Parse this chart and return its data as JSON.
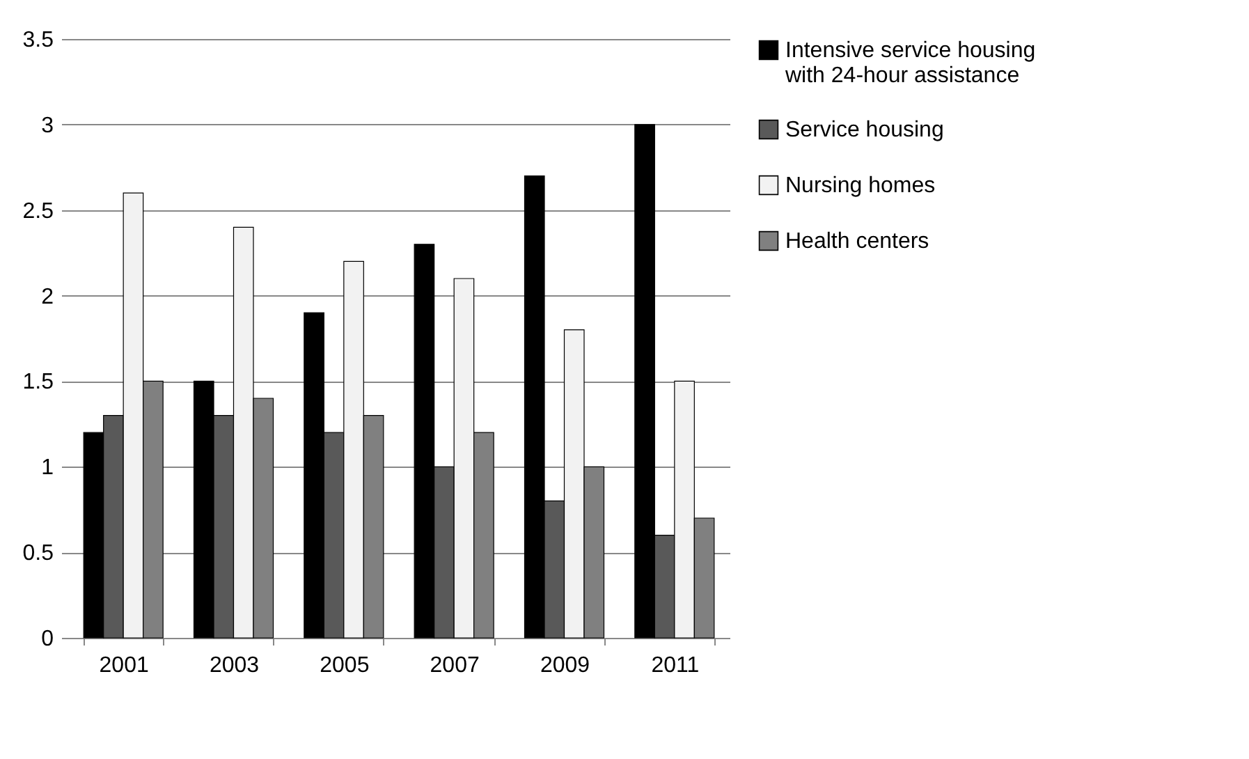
{
  "chart_data": {
    "type": "bar",
    "categories": [
      "2001",
      "2003",
      "2005",
      "2007",
      "2009",
      "2011"
    ],
    "series": [
      {
        "name": "Intensive service housing with 24-hour assistance",
        "color": "#000000",
        "values": [
          1.2,
          1.5,
          1.9,
          2.3,
          2.7,
          3.0
        ]
      },
      {
        "name": "Service housing",
        "color": "#595959",
        "values": [
          1.3,
          1.3,
          1.2,
          1.0,
          0.8,
          0.6
        ]
      },
      {
        "name": "Nursing homes",
        "color": "#f2f2f2",
        "values": [
          2.6,
          2.4,
          2.2,
          2.1,
          1.8,
          1.5
        ]
      },
      {
        "name": "Health centers",
        "color": "#808080",
        "values": [
          1.5,
          1.4,
          1.3,
          1.2,
          1.0,
          0.7
        ]
      }
    ],
    "ylim": [
      0,
      3.5
    ],
    "yticks": [
      0,
      0.5,
      1,
      1.5,
      2,
      2.5,
      3,
      3.5
    ],
    "grid": "y",
    "legend": "right"
  }
}
